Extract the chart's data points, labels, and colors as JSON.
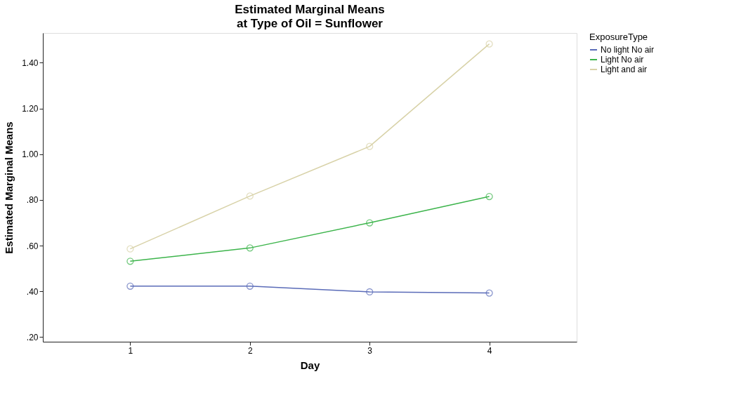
{
  "chart_data": {
    "type": "line",
    "title": "Estimated Marginal Means",
    "subtitle": "at Type of Oil = Sunflower",
    "xlabel": "Day",
    "ylabel": "Estimated Marginal Means",
    "legend_title": "ExposureType",
    "legend": "top right",
    "marker": "circle",
    "line_style": "solid",
    "grid": false,
    "x": [
      1,
      2,
      3,
      4
    ],
    "xlim": [
      0.27,
      4.73
    ],
    "xticks": [
      1,
      2,
      3,
      4
    ],
    "ylim": [
      0.18,
      1.53
    ],
    "yticks": [
      {
        "value": 0.2,
        "label": ".20"
      },
      {
        "value": 0.4,
        "label": ".40"
      },
      {
        "value": 0.6,
        "label": ".60"
      },
      {
        "value": 0.8,
        "label": ".80"
      },
      {
        "value": 1.0,
        "label": "1.00"
      },
      {
        "value": 1.2,
        "label": "1.20"
      },
      {
        "value": 1.4,
        "label": "1.40"
      }
    ],
    "series": [
      {
        "name": "No light No air",
        "color": "#5a6bb8",
        "values": [
          0.423,
          0.423,
          0.398,
          0.393
        ]
      },
      {
        "name": "Light No air",
        "color": "#3cb44b",
        "values": [
          0.532,
          0.59,
          0.7,
          0.815
        ]
      },
      {
        "name": "Light and air",
        "color": "#d8d2a8",
        "values": [
          0.586,
          0.817,
          1.034,
          1.482
        ]
      }
    ]
  }
}
